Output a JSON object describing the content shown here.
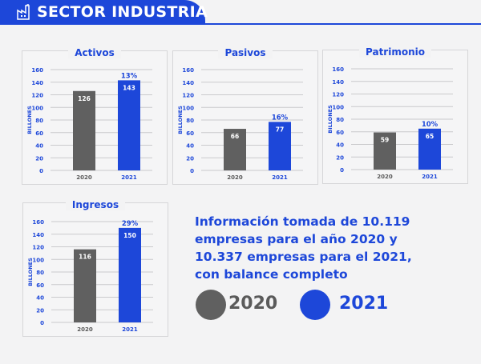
{
  "header": {
    "title": "SECTOR INDUSTRIA",
    "icon": "factory-icon"
  },
  "colors": {
    "y2020": "#606060",
    "y2021": "#1d47d9",
    "axis_text": "#1d47d9"
  },
  "chart_data": [
    {
      "type": "bar",
      "title": "Activos",
      "ylabel": "BILLONES",
      "ylim": [
        0,
        160
      ],
      "yticks": [
        0,
        20,
        40,
        60,
        80,
        100,
        120,
        140,
        160
      ],
      "categories": [
        "2020",
        "2021"
      ],
      "values": [
        126,
        143
      ],
      "growth_label": "13%",
      "grid": true
    },
    {
      "type": "bar",
      "title": "Pasivos",
      "ylabel": "BILLONES",
      "ylim": [
        0,
        160
      ],
      "yticks": [
        0,
        20,
        40,
        60,
        80,
        100,
        120,
        140,
        160
      ],
      "categories": [
        "2020",
        "2021"
      ],
      "values": [
        66,
        77
      ],
      "growth_label": "16%",
      "grid": true
    },
    {
      "type": "bar",
      "title": "Patrimonio",
      "ylabel": "BILLONES",
      "ylim": [
        0,
        160
      ],
      "yticks": [
        0,
        20,
        40,
        60,
        80,
        100,
        120,
        140,
        160
      ],
      "categories": [
        "2020",
        "2021"
      ],
      "values": [
        59,
        65
      ],
      "growth_label": "10%",
      "grid": true
    },
    {
      "type": "bar",
      "title": "Ingresos",
      "ylabel": "BILLONES",
      "ylim": [
        0,
        160
      ],
      "yticks": [
        0,
        20,
        40,
        60,
        80,
        100,
        120,
        140,
        160
      ],
      "categories": [
        "2020",
        "2021"
      ],
      "values": [
        116,
        150
      ],
      "growth_label": "29%",
      "grid": true
    }
  ],
  "info": {
    "text": "Información tomada de 10.119 empresas para el año 2020 y 10.337 empresas para el 2021, con balance completo"
  },
  "legend": {
    "items": [
      {
        "label": "2020"
      },
      {
        "label": "2021"
      }
    ]
  }
}
